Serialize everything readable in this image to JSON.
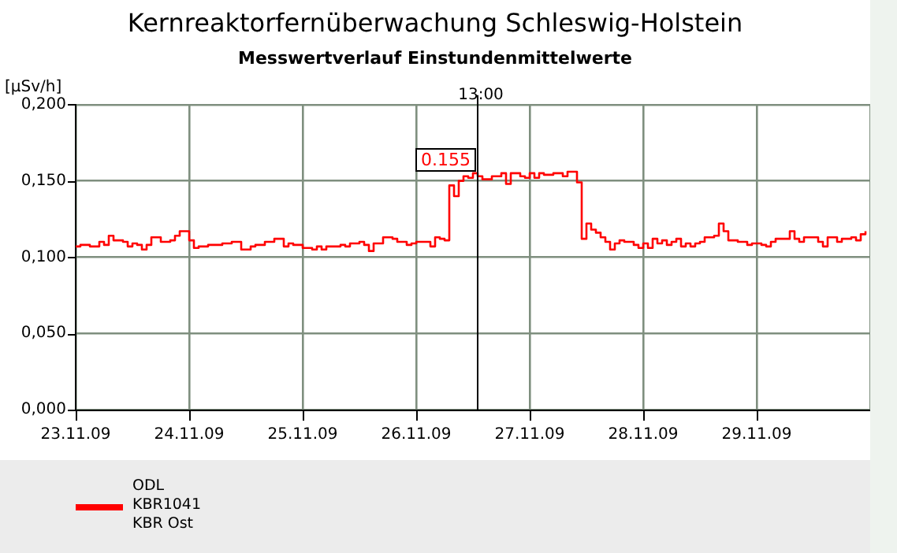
{
  "chart_data": {
    "type": "step",
    "title": "Kernreaktorfernüberwachung Schleswig-Holstein",
    "subtitle": "Messwertverlauf Einstundenmittelwerte",
    "ylabel": "[µSv/h]",
    "x": [
      "--11-23T00:00",
      "--11-23T01:00",
      "--11-23T02:00",
      "--11-23T03:00",
      "--11-23T05:00",
      "--11-23T06:00",
      "--11-23T07:00",
      "--11-23T08:00",
      "--11-23T10:00",
      "--11-23T11:00",
      "--11-23T12:00",
      "--11-23T13:00",
      "--11-23T14:00",
      "--11-23T15:00",
      "--11-23T16:00",
      "--11-23T18:00",
      "--11-23T20:00",
      "--11-23T21:00",
      "--11-23T22:00",
      "--11-24T00:00",
      "--11-24T01:00",
      "--11-24T02:00",
      "--11-24T04:00",
      "--11-24T07:00",
      "--11-24T08:00",
      "--11-24T09:00",
      "--11-24T11:00",
      "--11-24T13:00",
      "--11-24T14:00",
      "--11-24T16:00",
      "--11-24T18:00",
      "--11-24T20:00",
      "--11-24T21:00",
      "--11-24T22:00",
      "--11-25T00:00",
      "--11-25T02:00",
      "--11-25T03:00",
      "--11-25T04:00",
      "--11-25T05:00",
      "--11-25T07:00",
      "--11-25T08:00",
      "--11-25T09:00",
      "--11-25T10:00",
      "--11-25T12:00",
      "--11-25T13:00",
      "--11-25T14:00",
      "--11-25T15:00",
      "--11-25T17:00",
      "--11-25T19:00",
      "--11-25T20:00",
      "--11-25T22:00",
      "--11-25T23:00",
      "--11-26T00:00",
      "--11-26T02:00",
      "--11-26T03:00",
      "--11-26T04:00",
      "--11-26T05:00",
      "--11-26T06:00",
      "--11-26T07:00",
      "--11-26T08:00",
      "--11-26T09:00",
      "--11-26T10:00",
      "--11-26T11:00",
      "--11-26T12:00",
      "--11-26T13:00",
      "--11-26T14:00",
      "--11-26T16:00",
      "--11-26T18:00",
      "--11-26T19:00",
      "--11-26T20:00",
      "--11-26T22:00",
      "--11-26T23:00",
      "--11-27T00:00",
      "--11-27T01:00",
      "--11-27T02:00",
      "--11-27T03:00",
      "--11-27T05:00",
      "--11-27T07:00",
      "--11-27T08:00",
      "--11-27T10:00",
      "--11-27T11:00",
      "--11-27T12:00",
      "--11-27T13:00",
      "--11-27T14:00",
      "--11-27T15:00",
      "--11-27T16:00",
      "--11-27T17:00",
      "--11-27T18:00",
      "--11-27T19:00",
      "--11-27T20:00",
      "--11-27T22:00",
      "--11-27T23:00",
      "--11-28T00:00",
      "--11-28T01:00",
      "--11-28T02:00",
      "--11-28T03:00",
      "--11-28T04:00",
      "--11-28T05:00",
      "--11-28T06:00",
      "--11-28T07:00",
      "--11-28T08:00",
      "--11-28T09:00",
      "--11-28T10:00",
      "--11-28T11:00",
      "--11-28T12:00",
      "--11-28T13:00",
      "--11-28T15:00",
      "--11-28T16:00",
      "--11-28T17:00",
      "--11-28T18:00",
      "--11-28T20:00",
      "--11-28T22:00",
      "--11-28T23:00",
      "--11-29T01:00",
      "--11-29T02:00",
      "--11-29T03:00",
      "--11-29T04:00",
      "--11-29T07:00",
      "--11-29T08:00",
      "--11-29T09:00",
      "--11-29T10:00",
      "--11-29T13:00",
      "--11-29T14:00",
      "--11-29T15:00",
      "--11-29T17:00",
      "--11-29T18:00",
      "--11-29T20:00",
      "--11-29T21:00",
      "--11-29T22:00",
      "--11-29T23:00"
    ],
    "series": [
      {
        "name": "ODL\nKBR1041\nKBR Ost",
        "color": "#ff0000",
        "values": [
          0.107,
          0.108,
          0.108,
          0.107,
          0.11,
          0.108,
          0.114,
          0.111,
          0.11,
          0.107,
          0.109,
          0.108,
          0.105,
          0.108,
          0.113,
          0.11,
          0.111,
          0.114,
          0.117,
          0.111,
          0.106,
          0.107,
          0.108,
          0.109,
          0.109,
          0.11,
          0.105,
          0.107,
          0.108,
          0.11,
          0.112,
          0.107,
          0.109,
          0.108,
          0.106,
          0.105,
          0.107,
          0.105,
          0.107,
          0.107,
          0.108,
          0.107,
          0.109,
          0.11,
          0.108,
          0.104,
          0.109,
          0.113,
          0.112,
          0.11,
          0.108,
          0.109,
          0.11,
          0.11,
          0.107,
          0.113,
          0.112,
          0.111,
          0.147,
          0.14,
          0.15,
          0.153,
          0.152,
          0.155,
          0.153,
          0.151,
          0.153,
          0.155,
          0.148,
          0.155,
          0.153,
          0.152,
          0.155,
          0.152,
          0.155,
          0.154,
          0.155,
          0.153,
          0.156,
          0.149,
          0.112,
          0.122,
          0.118,
          0.116,
          0.113,
          0.11,
          0.105,
          0.109,
          0.111,
          0.11,
          0.108,
          0.106,
          0.109,
          0.106,
          0.112,
          0.109,
          0.111,
          0.108,
          0.11,
          0.112,
          0.107,
          0.109,
          0.107,
          0.109,
          0.11,
          0.113,
          0.114,
          0.122,
          0.117,
          0.111,
          0.11,
          0.108,
          0.109,
          0.108,
          0.107,
          0.11,
          0.112,
          0.117,
          0.112,
          0.11,
          0.113,
          0.11,
          0.107,
          0.113,
          0.11,
          0.112,
          0.113,
          0.111,
          0.115,
          0.117
        ]
      }
    ],
    "xlim": [
      "--11-23",
      "--11-30"
    ],
    "xticks": [
      {
        "value": "--11-23",
        "label": "23.11.09"
      },
      {
        "value": "--11-24",
        "label": "24.11.09"
      },
      {
        "value": "--11-25",
        "label": "25.11.09"
      },
      {
        "value": "--11-26",
        "label": "26.11.09"
      },
      {
        "value": "--11-27",
        "label": "27.11.09"
      },
      {
        "value": "--11-28",
        "label": "28.11.09"
      },
      {
        "value": "--11-29",
        "label": "29.11.09"
      },
      {
        "value": "--11-30",
        "label": null
      }
    ],
    "ylim": [
      0,
      0.2
    ],
    "yticks": [
      {
        "value": 0,
        "label": "0,000"
      },
      {
        "value": 0.05,
        "label": "0,050"
      },
      {
        "value": 0.1,
        "label": "0,100"
      },
      {
        "value": 0.15,
        "label": "0,150"
      },
      {
        "value": 0.2,
        "label": "0,200"
      }
    ],
    "grid": true,
    "legend": "bottom",
    "ref_lines": [
      {
        "axis": "x",
        "value": "--11-26T13:00",
        "label": "13:00",
        "color": "#000000"
      }
    ],
    "annotations": [
      {
        "text": "0.155",
        "x": "--11-26T13:00",
        "y": 0.155
      }
    ]
  }
}
